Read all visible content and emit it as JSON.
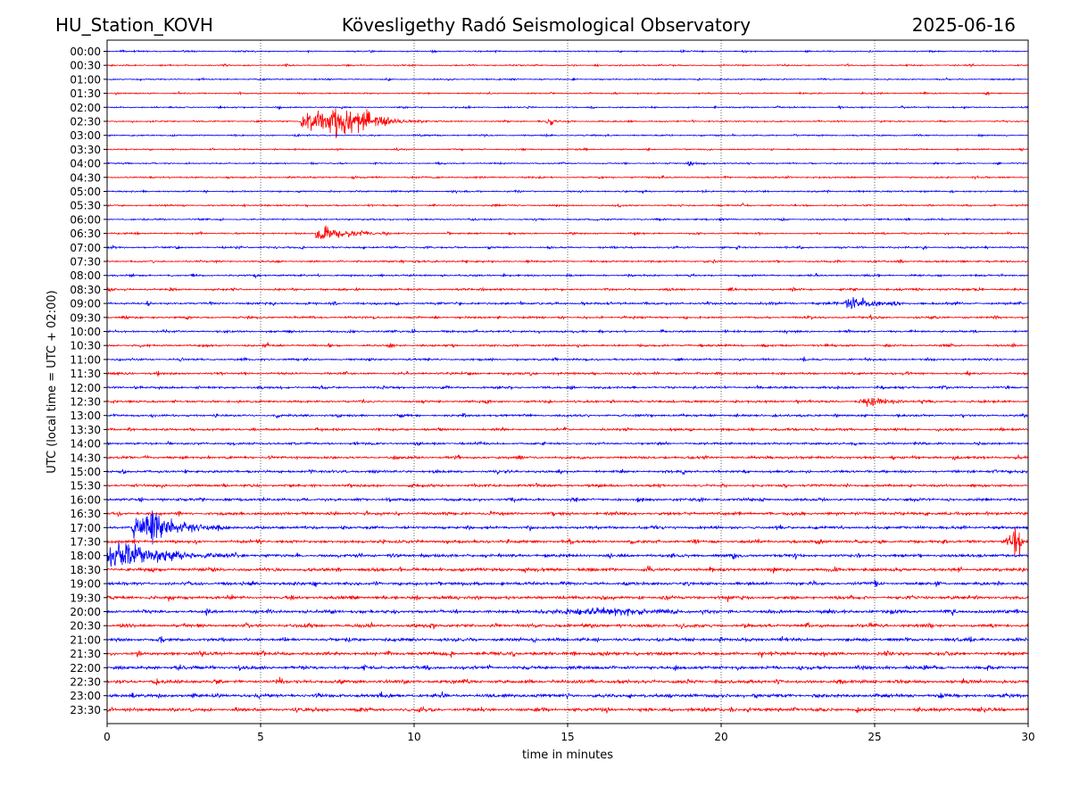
{
  "header": {
    "station": "HU_Station_KOVH",
    "observatory": "Kövesligethy Radó Seismological Observatory",
    "date": "2025-06-16"
  },
  "chart_data": {
    "type": "line",
    "title": "Kövesligethy Radó Seismological Observatory",
    "xlabel": "time in minutes",
    "ylabel": "UTC (local time = UTC + 02:00)",
    "xlim": [
      0,
      30
    ],
    "x_ticks": [
      0,
      5,
      10,
      15,
      20,
      25,
      30
    ],
    "vertical_grid": true,
    "grid_style": "dotted",
    "row_labels": [
      "00:00",
      "00:30",
      "01:00",
      "01:30",
      "02:00",
      "02:30",
      "03:00",
      "03:30",
      "04:00",
      "04:30",
      "05:00",
      "05:30",
      "06:00",
      "06:30",
      "07:00",
      "07:30",
      "08:00",
      "08:30",
      "09:00",
      "09:30",
      "10:00",
      "10:30",
      "11:00",
      "11:30",
      "12:00",
      "12:30",
      "13:00",
      "13:30",
      "14:00",
      "14:30",
      "15:00",
      "15:30",
      "16:00",
      "16:30",
      "17:00",
      "17:30",
      "18:00",
      "18:30",
      "19:00",
      "19:30",
      "20:00",
      "20:30",
      "21:00",
      "21:30",
      "22:00",
      "22:30",
      "23:00",
      "23:30"
    ],
    "colors": [
      "#0000ff",
      "#ff0000"
    ],
    "color_pattern": "alternating, starting blue at 00:00",
    "noise_levels": [
      0.6,
      0.6,
      0.6,
      0.6,
      0.6,
      0.6,
      0.6,
      0.6,
      0.6,
      0.7,
      0.7,
      0.7,
      0.7,
      0.7,
      0.8,
      0.8,
      0.8,
      0.9,
      1.0,
      0.9,
      0.9,
      0.9,
      0.9,
      1.0,
      1.0,
      1.0,
      1.0,
      1.0,
      1.0,
      1.1,
      1.1,
      1.1,
      1.2,
      1.3,
      1.3,
      1.3,
      1.3,
      1.4,
      1.4,
      1.4,
      1.4,
      1.4,
      1.4,
      1.5,
      1.5,
      1.5,
      1.5,
      1.5
    ],
    "events": [
      {
        "row": "02:30",
        "start_min": 6.3,
        "peak_min": 8.1,
        "end_min": 10.5,
        "amplitude": 14
      },
      {
        "row": "02:30",
        "start_min": 14.3,
        "peak_min": 14.5,
        "end_min": 14.8,
        "amplitude": 3
      },
      {
        "row": "04:00",
        "start_min": 18.9,
        "peak_min": 19.0,
        "end_min": 19.6,
        "amplitude": 3
      },
      {
        "row": "06:30",
        "start_min": 6.8,
        "peak_min": 7.0,
        "end_min": 9.3,
        "amplitude": 8
      },
      {
        "row": "09:00",
        "start_min": 24.0,
        "peak_min": 24.4,
        "end_min": 26.0,
        "amplitude": 6
      },
      {
        "row": "12:30",
        "start_min": 24.6,
        "peak_min": 24.9,
        "end_min": 26.5,
        "amplitude": 4
      },
      {
        "row": "17:00",
        "start_min": 0.8,
        "peak_min": 1.5,
        "end_min": 4.0,
        "amplitude": 15
      },
      {
        "row": "17:30",
        "start_min": 29.3,
        "peak_min": 29.7,
        "end_min": 30.0,
        "amplitude": 14
      },
      {
        "row": "18:00",
        "start_min": 0.0,
        "peak_min": 0.6,
        "end_min": 4.2,
        "amplitude": 11
      },
      {
        "row": "20:00",
        "start_min": 14.5,
        "peak_min": 17.0,
        "end_min": 19.5,
        "amplitude": 2.5
      }
    ]
  }
}
